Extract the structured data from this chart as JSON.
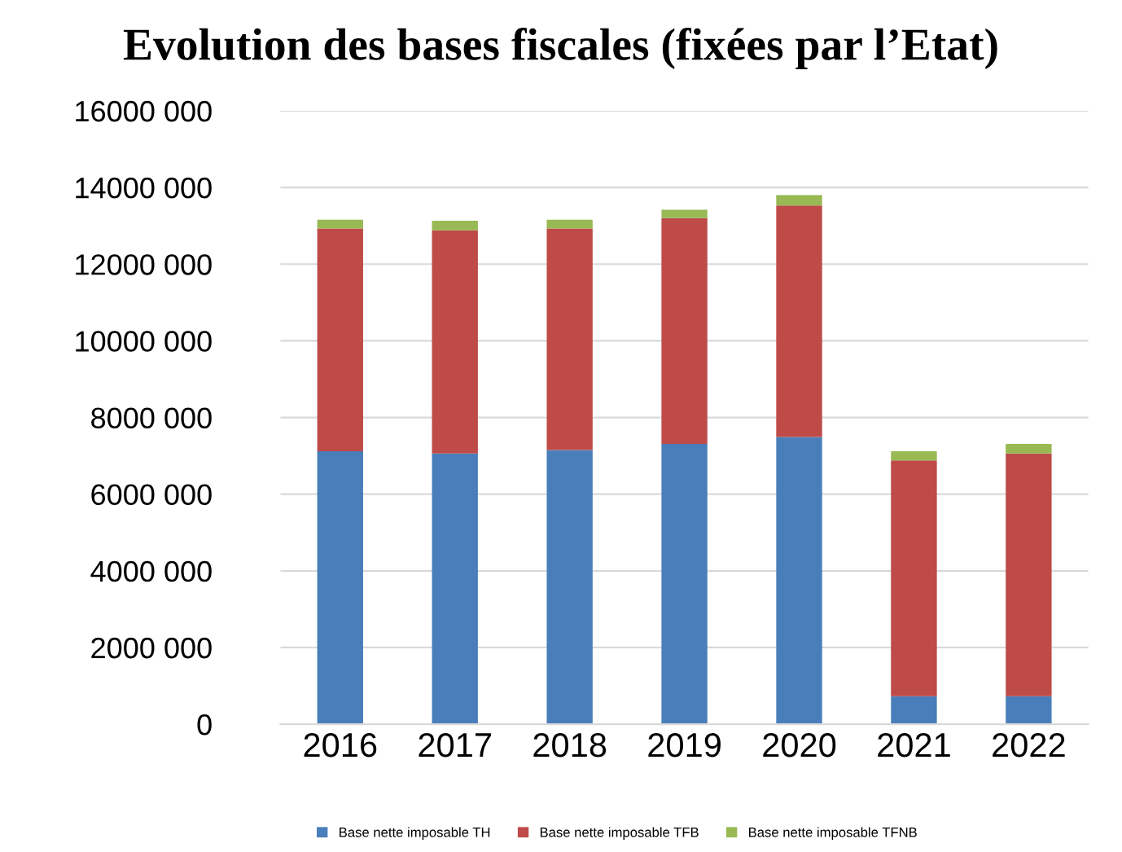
{
  "chart_data": {
    "type": "bar",
    "stacked": true,
    "title": "Evolution des bases fiscales (fixées par l’Etat)",
    "categories": [
      "2016",
      "2017",
      "2018",
      "2019",
      "2020",
      "2021",
      "2022"
    ],
    "series": [
      {
        "name": "Base nette imposable TH",
        "color": "#4a7ebb",
        "values": [
          7120000,
          7060000,
          7150000,
          7310000,
          7490000,
          730000,
          730000
        ]
      },
      {
        "name": "Base nette imposable TFB",
        "color": "#be4b48",
        "values": [
          5810000,
          5820000,
          5780000,
          5890000,
          6040000,
          6150000,
          6330000
        ]
      },
      {
        "name": "Base nette imposable TFNB",
        "color": "#98b954",
        "values": [
          230000,
          250000,
          230000,
          220000,
          270000,
          240000,
          250000
        ]
      }
    ],
    "ylim": [
      0,
      16000000
    ],
    "yticks": [
      {
        "value": 0,
        "label": "0"
      },
      {
        "value": 2000000,
        "label": "2000 000"
      },
      {
        "value": 4000000,
        "label": "4000 000"
      },
      {
        "value": 6000000,
        "label": "6000 000"
      },
      {
        "value": 8000000,
        "label": "8000 000"
      },
      {
        "value": 10000000,
        "label": "10000 000"
      },
      {
        "value": 12000000,
        "label": "12000 000"
      },
      {
        "value": 14000000,
        "label": "14000 000"
      },
      {
        "value": 16000000,
        "label": "16000 000"
      }
    ],
    "grid": "y",
    "legend": "bottom"
  }
}
